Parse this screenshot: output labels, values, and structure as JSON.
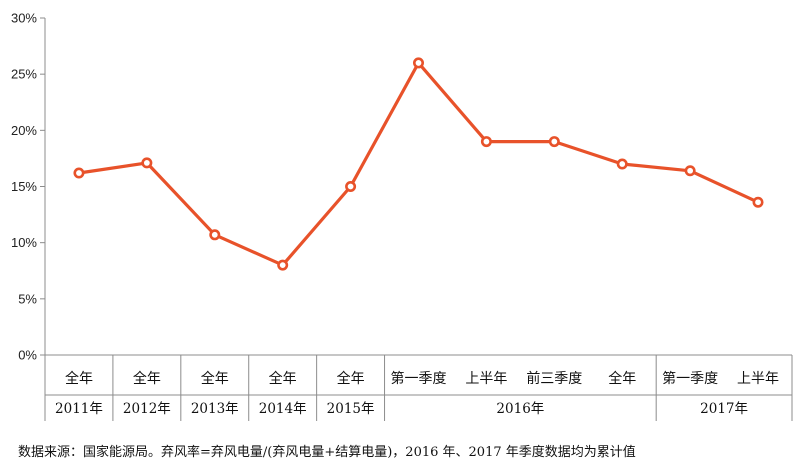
{
  "chart_data": {
    "type": "line",
    "categories": [
      {
        "label": "全年",
        "group": "2011年"
      },
      {
        "label": "全年",
        "group": "2012年"
      },
      {
        "label": "全年",
        "group": "2013年"
      },
      {
        "label": "全年",
        "group": "2014年"
      },
      {
        "label": "全年",
        "group": "2015年"
      },
      {
        "label": "第一季度",
        "group": "2016年"
      },
      {
        "label": "上半年",
        "group": "2016年"
      },
      {
        "label": "前三季度",
        "group": "2016年"
      },
      {
        "label": "全年",
        "group": "2016年"
      },
      {
        "label": "第一季度",
        "group": "2017年"
      },
      {
        "label": "上半年",
        "group": "2017年"
      }
    ],
    "groups": [
      "2011年",
      "2012年",
      "2013年",
      "2014年",
      "2015年",
      "2016年",
      "2017年"
    ],
    "series": [
      {
        "values": [
          16.2,
          17.1,
          10.7,
          8.0,
          15.0,
          26.0,
          19.0,
          19.0,
          17.0,
          16.4,
          13.6
        ]
      }
    ],
    "ylim": [
      0,
      30
    ],
    "yticks": [
      "0%",
      "5%",
      "10%",
      "15%",
      "20%",
      "25%",
      "30%"
    ],
    "legend": "none",
    "grid": false,
    "line_color": "#e8522a"
  },
  "source_note": "数据来源：国家能源局。弃风率=弃风电量/(弃风电量+结算电量)，2016 年、2017 年季度数据均为累计值"
}
